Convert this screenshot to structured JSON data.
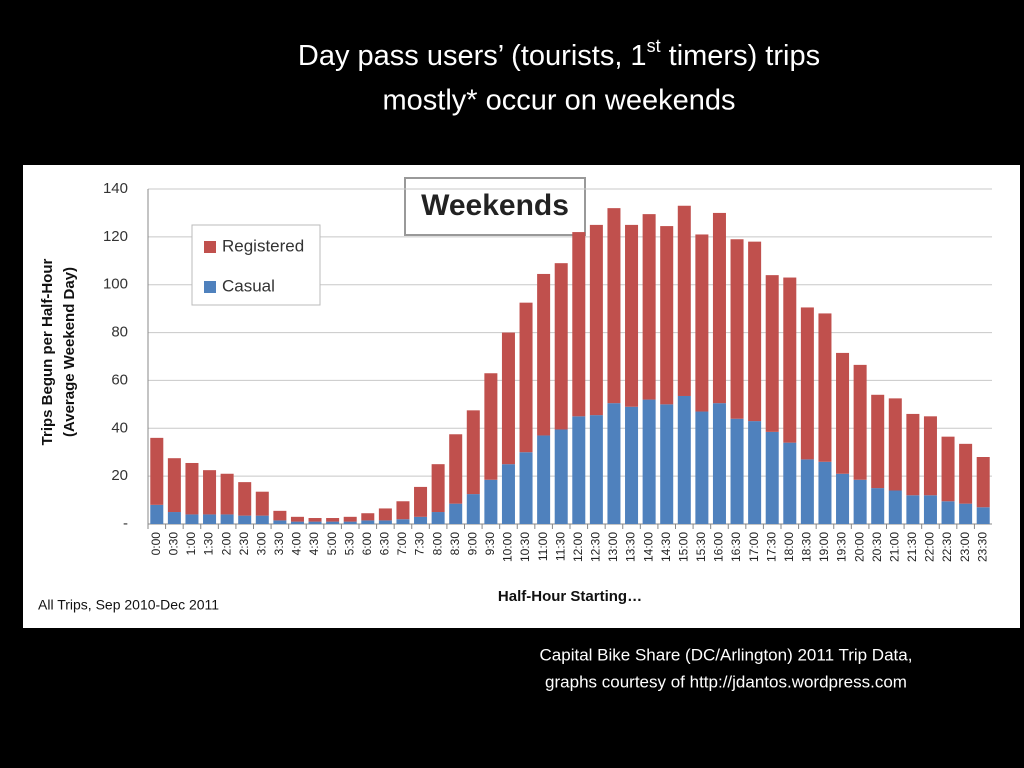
{
  "slide_title": [
    [
      "Day pass users’ (tourists, 1",
      "st",
      " timers) trips"
    ],
    [
      "mostly* occur on weekends"
    ]
  ],
  "caption": [
    "Capital Bike Share (DC/Arlington) 2011 Trip Data,",
    "graphs courtesy of http://jdantos.wordpress.com"
  ],
  "chart_data": {
    "type": "stacked_bar",
    "title": "Weekends",
    "y_label": [
      "Trips Begun per Half-Hour",
      "(Average Weekend Day)"
    ],
    "x_label": "Half-Hour Starting…",
    "note": "All Trips, Sep 2010-Dec 2011",
    "categories": [
      "0:00",
      "0:30",
      "1:00",
      "1:30",
      "2:00",
      "2:30",
      "3:00",
      "3:30",
      "4:00",
      "4:30",
      "5:00",
      "5:30",
      "6:00",
      "6:30",
      "7:00",
      "7:30",
      "8:00",
      "8:30",
      "9:00",
      "9:30",
      "10:00",
      "10:30",
      "11:00",
      "11:30",
      "12:00",
      "12:30",
      "13:00",
      "13:30",
      "14:00",
      "14:30",
      "15:00",
      "15:30",
      "16:00",
      "16:30",
      "17:00",
      "17:30",
      "18:00",
      "18:30",
      "19:00",
      "19:30",
      "20:00",
      "20:30",
      "21:00",
      "21:30",
      "22:00",
      "22:30",
      "23:00",
      "23:30"
    ],
    "series": [
      {
        "name": "Casual",
        "color": "#4f81bd",
        "values": [
          8,
          5,
          4,
          4,
          4,
          3.5,
          3.5,
          1.5,
          1,
          1,
          1,
          1,
          1.5,
          1.5,
          2,
          3,
          5,
          8.5,
          12.5,
          18.5,
          25,
          30,
          37,
          39.5,
          45,
          45.5,
          50.5,
          49,
          52,
          50,
          53.5,
          47,
          50.5,
          44,
          43,
          38.5,
          34,
          27,
          26,
          21,
          18.5,
          15,
          14,
          12,
          12,
          9.5,
          8.5,
          7
        ]
      },
      {
        "name": "Registered",
        "color": "#c0504d",
        "values": [
          28,
          22.5,
          21.5,
          18.5,
          17,
          14,
          10,
          4,
          2,
          1.5,
          1.5,
          2,
          3,
          5,
          7.5,
          12.5,
          20,
          29,
          35,
          44.5,
          55,
          62.5,
          67.5,
          69.5,
          77,
          79.5,
          81.5,
          76,
          77.5,
          74.5,
          79.5,
          74,
          79.5,
          75,
          75,
          65.5,
          69,
          63.5,
          62,
          50.5,
          48,
          39,
          38.5,
          34,
          33,
          27,
          25,
          21
        ]
      }
    ],
    "ylim": [
      0,
      140
    ],
    "yticks": [
      {
        "value": 0,
        "label": "-"
      },
      20,
      40,
      60,
      80,
      100,
      120,
      140
    ],
    "grid": true,
    "legend": "top-left"
  }
}
